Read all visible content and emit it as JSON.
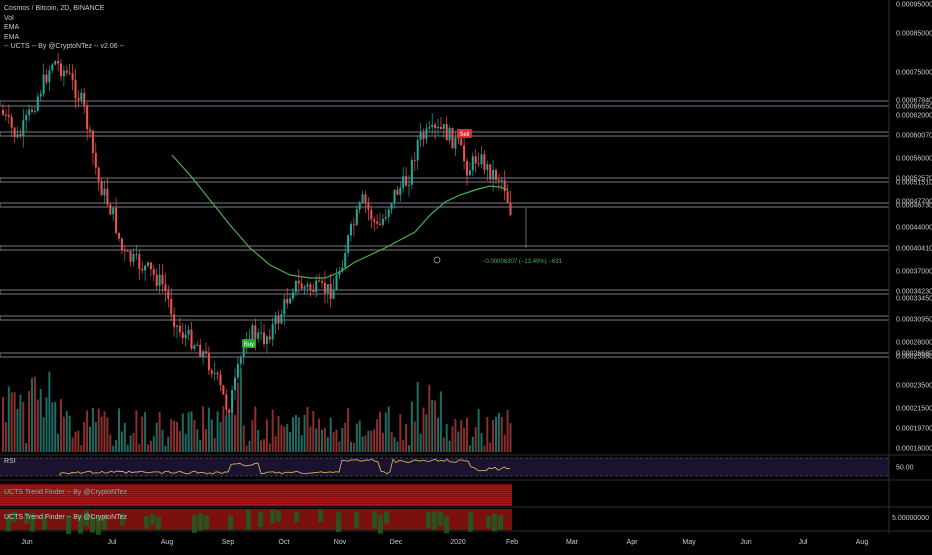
{
  "chart": {
    "legend": {
      "symbol": "Cosmos / Bitcoin, 2D, BINANCE",
      "lines": [
        "Vol",
        "EMA",
        "EMA",
        "-- UCTS -- By @CryptoNTez -- v2.06 --"
      ]
    },
    "rsi_label": "RSI",
    "rsi_value": "50.00",
    "trend_finder_label_1": "UCTS Trend Finder -- By @CryptoNTez",
    "trend_finder_label_2": "UCTS Trend Finder -- By @CryptoNTez",
    "trend_finder_value": "5.00000000",
    "price_axis": [
      "0.00095000",
      "0.00085000",
      "0.00075000",
      "0.00066650",
      "0.00060070",
      "0.00056000",
      "0.00051510",
      "0.00047700",
      "0.00044000",
      "0.00040410",
      "0.00037000",
      "0.00034230",
      "0.00030950",
      "0.00028000",
      "0.00025980",
      "0.00023500",
      "0.00021500",
      "0.00019700",
      "0.00018000"
    ],
    "price_axis_partial": [
      "0.00067840",
      "0.00062000",
      "0.00052570",
      "0.00046730",
      "0.00033450",
      "0.00026680"
    ],
    "time_axis": [
      "Jun",
      "Jul",
      "Aug",
      "Sep",
      "Oct",
      "Nov",
      "Dec",
      "2020",
      "Feb",
      "Mar",
      "Apr",
      "May",
      "Jun",
      "Jul",
      "Aug"
    ],
    "signals": {
      "buy": "Buy",
      "sell": "Sell"
    },
    "measure_label": "−0.00006307 (−13.49%) −631",
    "colors": {
      "background": "#000000",
      "up": "#26a69a",
      "down": "#ef5350",
      "ema": "#4caf50",
      "level_band": "#787b86",
      "rsi_line": "#c9b458",
      "rsi_band": "#1c1230",
      "buy": "#26a634",
      "sell": "#d32f2f"
    }
  }
}
